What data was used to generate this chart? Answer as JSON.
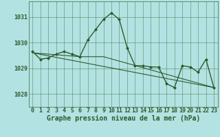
{
  "title": "Graphe pression niveau de la mer (hPa)",
  "background_color": "#b3e2e2",
  "grid_color": "#3a6b3a",
  "line_color": "#2d5a2d",
  "marker_color": "#2d5a2d",
  "xlim": [
    -0.5,
    23.5
  ],
  "ylim": [
    1027.5,
    1031.6
  ],
  "yticks": [
    1028,
    1029,
    1030,
    1031
  ],
  "xticks": [
    0,
    1,
    2,
    3,
    4,
    5,
    6,
    7,
    8,
    9,
    10,
    11,
    12,
    13,
    14,
    15,
    16,
    17,
    18,
    19,
    20,
    21,
    22,
    23
  ],
  "series1_x": [
    0,
    1,
    2,
    3,
    4,
    5,
    6,
    7,
    8,
    9,
    10,
    11,
    12,
    13,
    14,
    15,
    16,
    17,
    18,
    19,
    20,
    21,
    22,
    23
  ],
  "series1_y": [
    1029.65,
    1029.35,
    1029.4,
    1029.55,
    1029.65,
    1029.55,
    1029.45,
    1030.1,
    1030.5,
    1030.9,
    1031.15,
    1030.9,
    1029.8,
    1029.1,
    1029.1,
    1029.05,
    1029.05,
    1028.4,
    1028.25,
    1029.1,
    1029.05,
    1028.85,
    1029.35,
    1028.25
  ],
  "series2_x": [
    0,
    6,
    9,
    23
  ],
  "series2_y": [
    1029.6,
    1029.45,
    1029.45,
    1028.25
  ],
  "series3_x": [
    0,
    23
  ],
  "series3_y": [
    1029.6,
    1028.25
  ],
  "tick_fontsize": 6,
  "xlabel_fontsize": 7
}
